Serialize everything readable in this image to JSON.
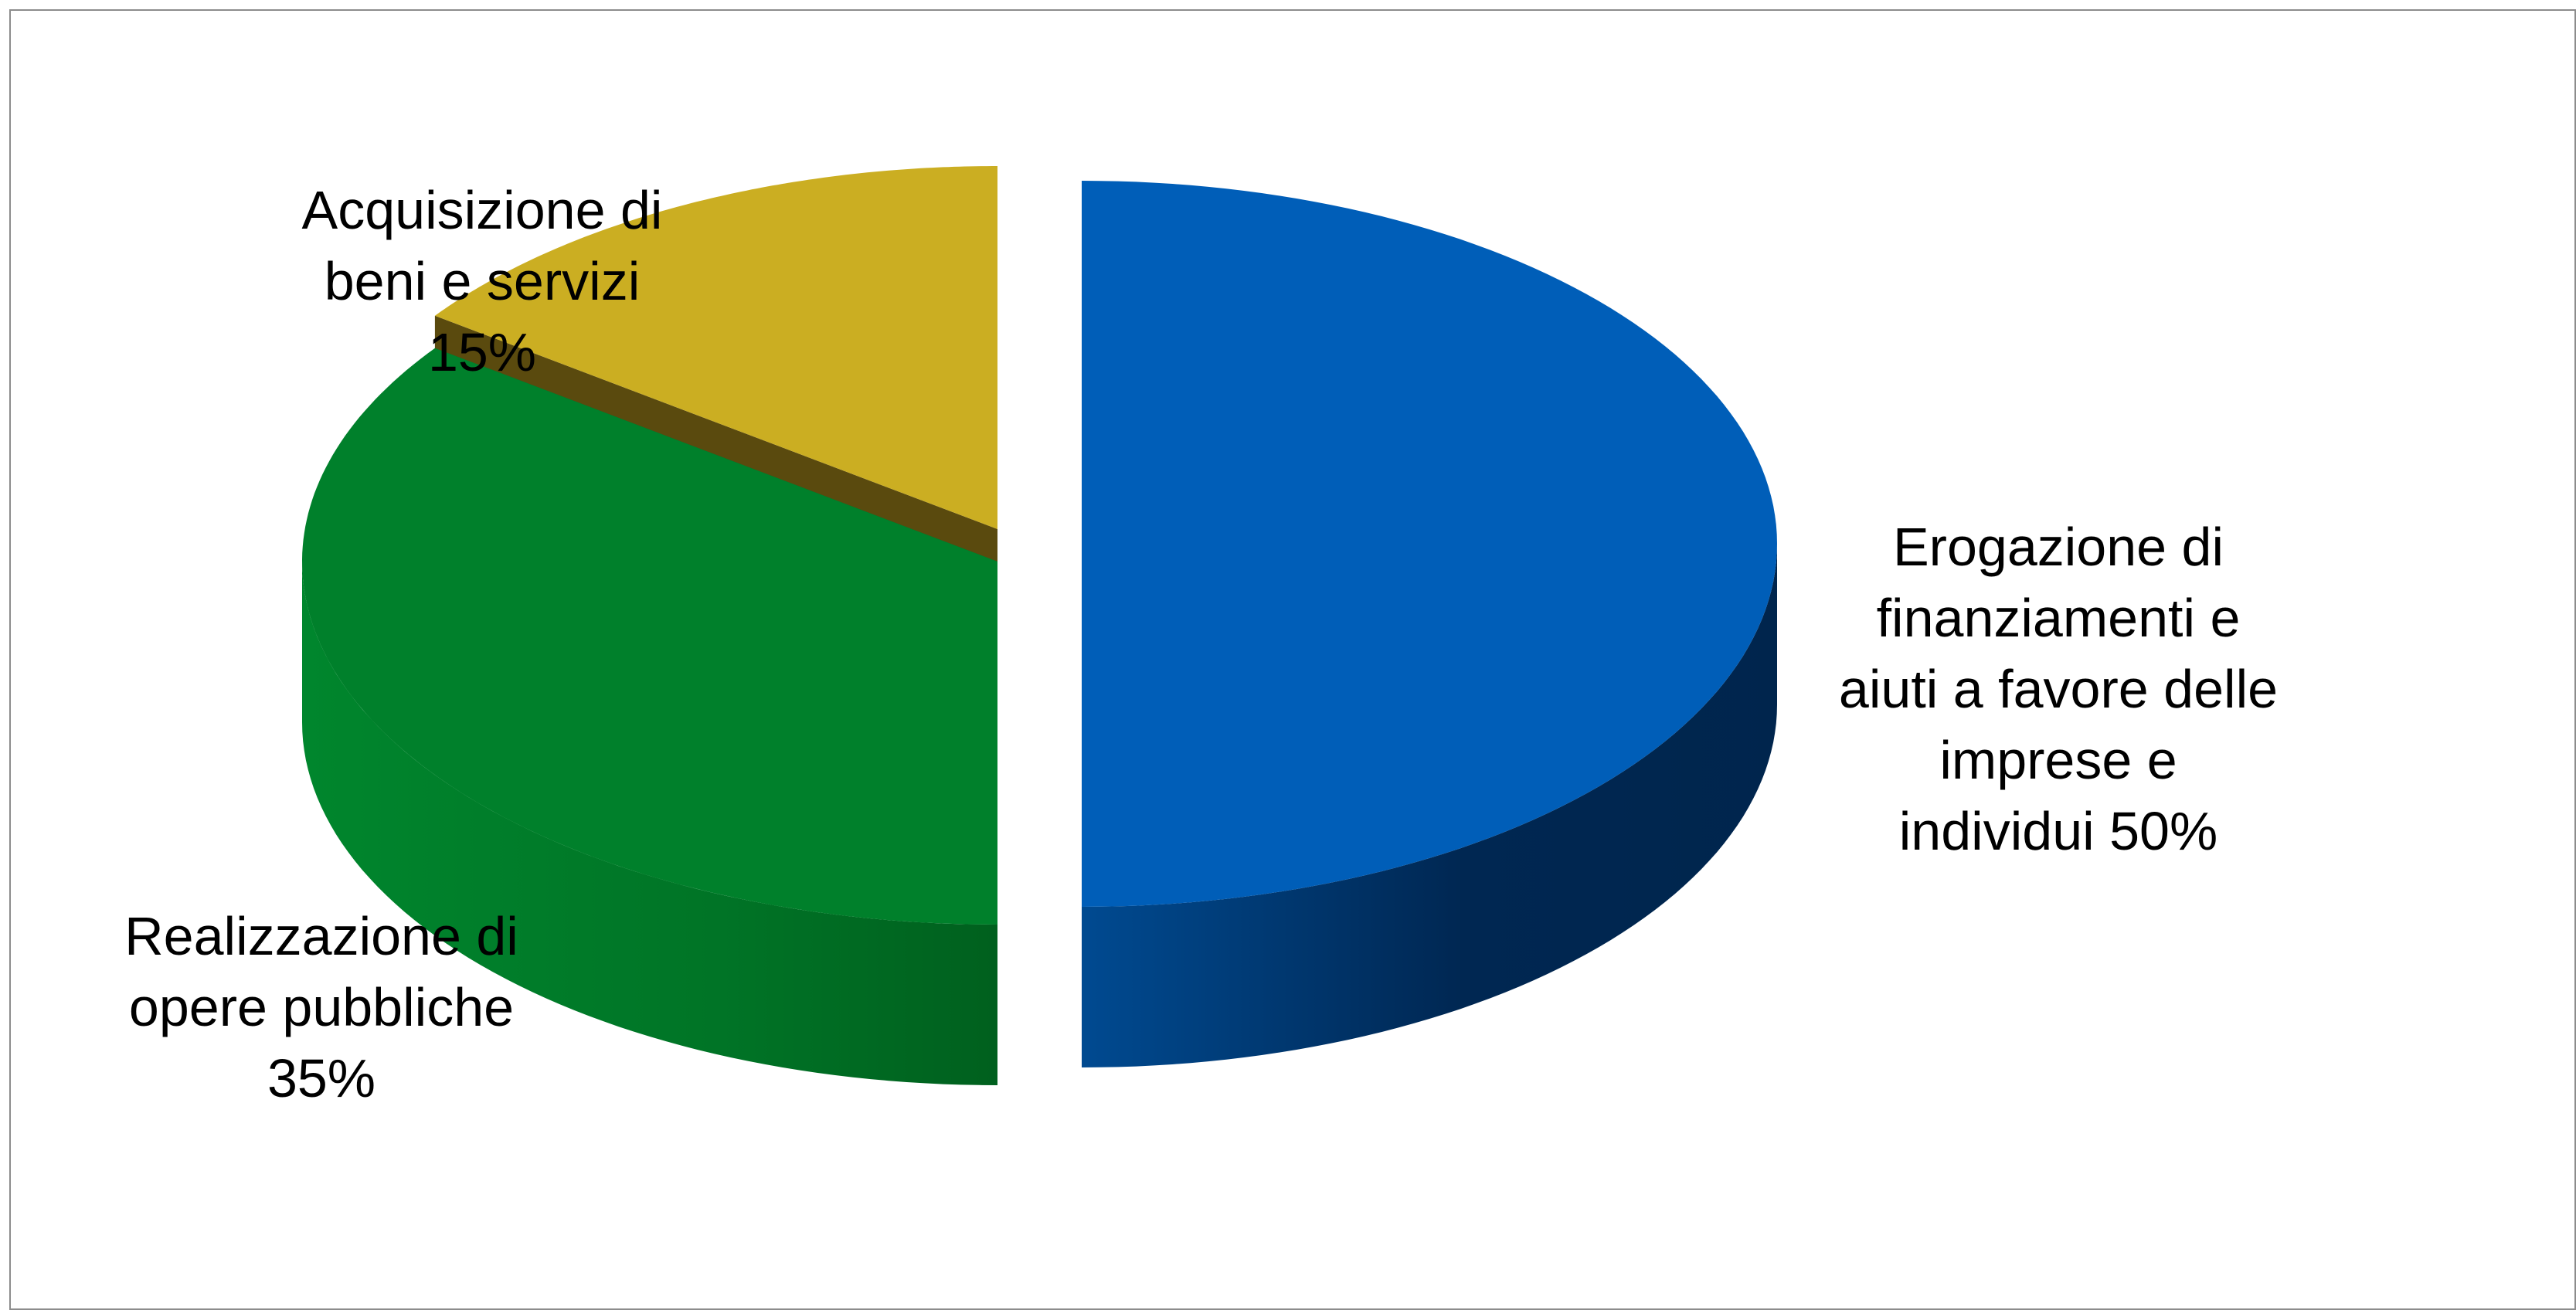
{
  "chart_data": {
    "type": "pie",
    "three_d": true,
    "exploded": true,
    "title": "",
    "slices": [
      {
        "label_lines": [
          "Erogazione di",
          "finanziamenti e",
          "aiuti a favore delle",
          "imprese e",
          "individui  50%"
        ],
        "value": 50,
        "color": "#005eb8",
        "side_color": "#002a55"
      },
      {
        "label_lines": [
          "Realizzazione di",
          "opere pubbliche",
          "35%"
        ],
        "value": 35,
        "color": "#00802b",
        "side_color": "#006622"
      },
      {
        "label_lines": [
          "Acquisizione di",
          "beni e servizi",
          "15%"
        ],
        "value": 15,
        "color": "#cbae22",
        "side_color": "#5a4a0e"
      }
    ]
  }
}
